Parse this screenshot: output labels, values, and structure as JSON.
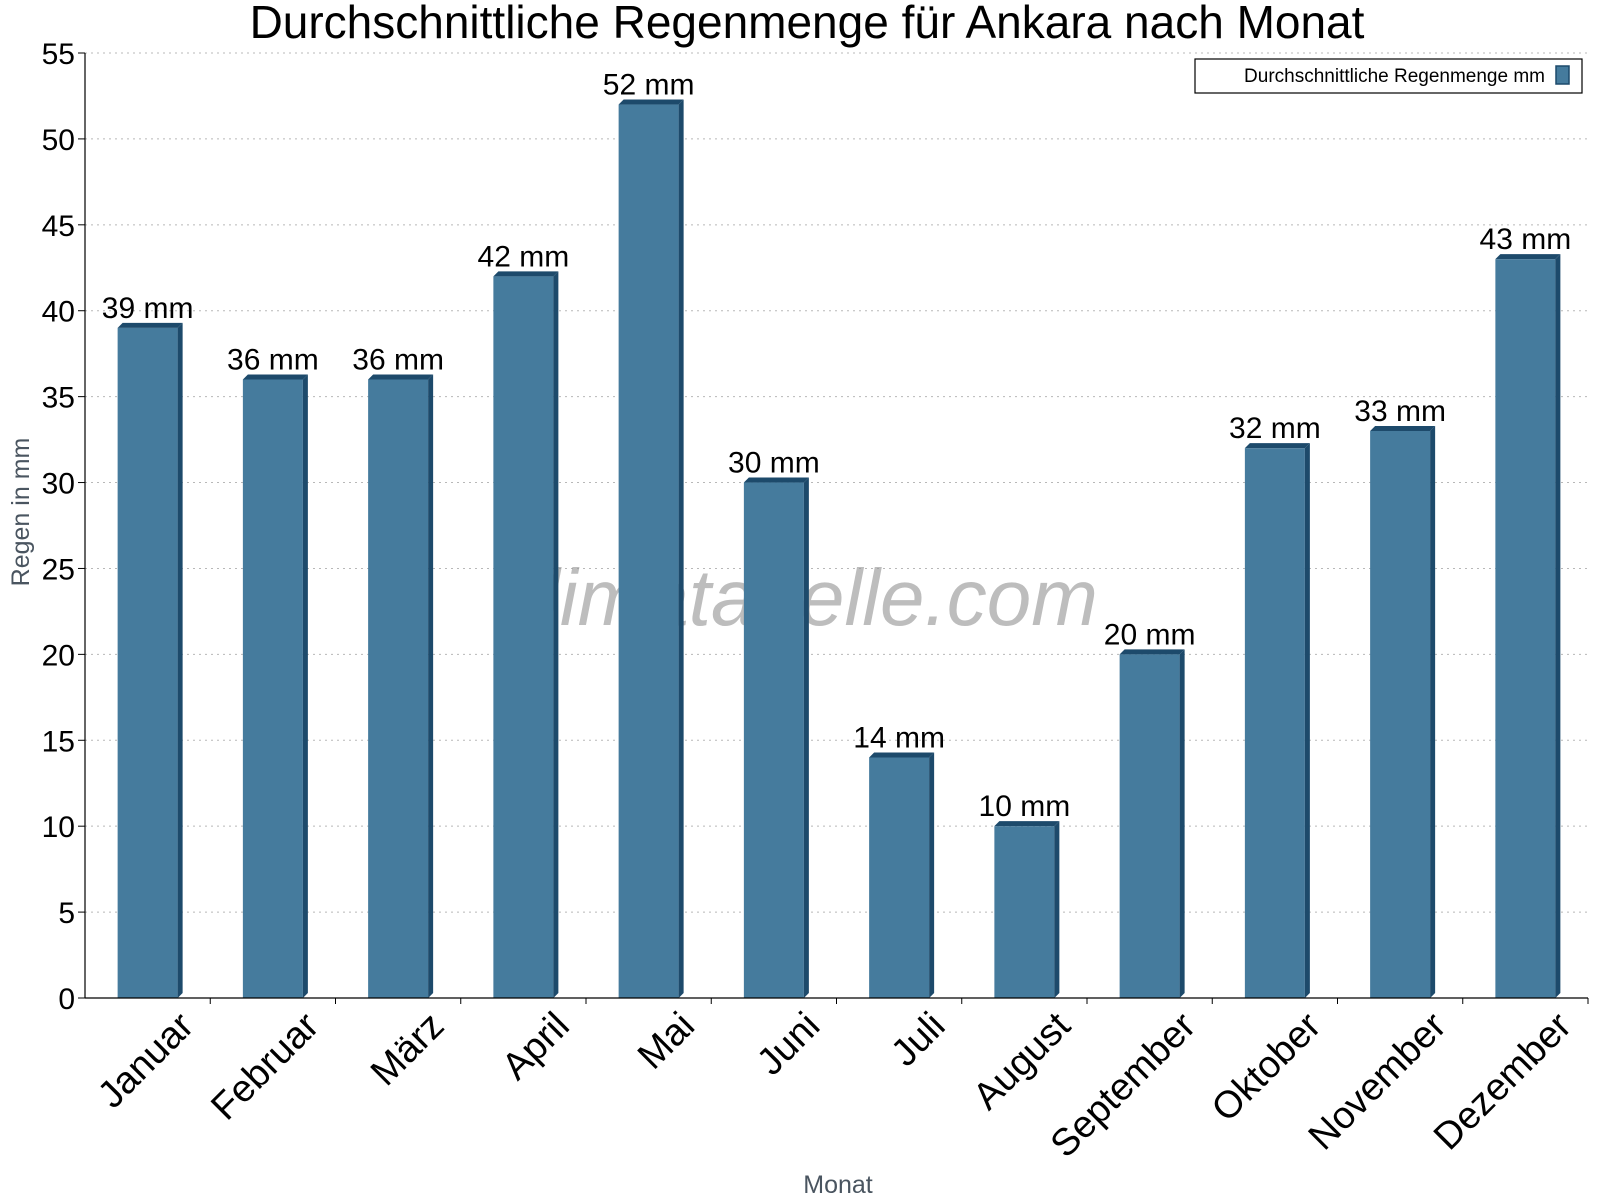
{
  "chart_data": {
    "type": "bar",
    "title": "Durchschnittliche Regenmenge für Ankara nach Monat",
    "xlabel": "Monat",
    "ylabel": "Regen in mm",
    "categories": [
      "Januar",
      "Februar",
      "März",
      "April",
      "Mai",
      "Juni",
      "Juli",
      "August",
      "September",
      "Oktober",
      "November",
      "Dezember"
    ],
    "series": [
      {
        "name": "Durchschnittliche Regenmenge mm",
        "values": [
          39,
          36,
          36,
          42,
          52,
          30,
          14,
          10,
          20,
          32,
          33,
          43
        ],
        "labels": [
          "39 mm",
          "36 mm",
          "36 mm",
          "42 mm",
          "52 mm",
          "30 mm",
          "14 mm",
          "10 mm",
          "20 mm",
          "32 mm",
          "33 mm",
          "43 mm"
        ],
        "color": "#457b9d",
        "edge_color": "#1d4a6b"
      }
    ],
    "ylim": [
      0,
      55
    ],
    "yticks": [
      "0",
      "5",
      "10",
      "15",
      "20",
      "25",
      "30",
      "35",
      "40",
      "45",
      "50",
      "55"
    ],
    "grid": true,
    "legend_position": "top-right"
  },
  "watermark": "klimatabelle.com"
}
